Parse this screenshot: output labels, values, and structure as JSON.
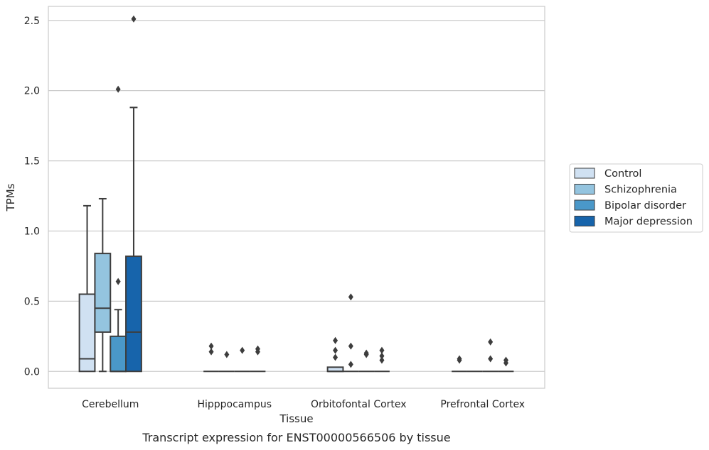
{
  "chart_data": {
    "type": "box",
    "xlabel": "Tissue",
    "ylabel": "TPMs",
    "caption": "Transcript expression for ENST00000566506 by tissue",
    "ylim": [
      -0.12,
      2.6
    ],
    "yticks": [
      "0.0",
      "0.5",
      "1.0",
      "1.5",
      "2.0",
      "2.5"
    ],
    "grid": "horizontal",
    "legend_position": "right",
    "categories": [
      "Cerebellum",
      "Hipppocampus",
      "Orbitofontal Cortex",
      "Prefrontal Cortex"
    ],
    "series": [
      {
        "name": "Control",
        "color": "#d0e1f2",
        "boxes": [
          {
            "min": 0.0,
            "q1": 0.0,
            "median": 0.09,
            "q3": 0.55,
            "max": 1.18,
            "outliers": []
          },
          {
            "min": 0.0,
            "q1": 0.0,
            "median": 0.0,
            "q3": 0.0,
            "max": 0.0,
            "outliers": [
              0.14,
              0.18
            ]
          },
          {
            "min": 0.0,
            "q1": 0.0,
            "median": 0.0,
            "q3": 0.03,
            "max": 0.03,
            "outliers": [
              0.1,
              0.15,
              0.22
            ]
          },
          {
            "min": 0.0,
            "q1": 0.0,
            "median": 0.0,
            "q3": 0.0,
            "max": 0.0,
            "outliers": [
              0.08,
              0.09
            ]
          }
        ]
      },
      {
        "name": "Schizophrenia",
        "color": "#94c4df",
        "boxes": [
          {
            "min": 0.0,
            "q1": 0.28,
            "median": 0.45,
            "q3": 0.84,
            "max": 1.23,
            "outliers": []
          },
          {
            "min": 0.0,
            "q1": 0.0,
            "median": 0.0,
            "q3": 0.0,
            "max": 0.0,
            "outliers": [
              0.12
            ]
          },
          {
            "min": 0.0,
            "q1": 0.0,
            "median": 0.0,
            "q3": 0.0,
            "max": 0.0,
            "outliers": [
              0.05,
              0.18,
              0.53
            ]
          },
          {
            "min": 0.0,
            "q1": 0.0,
            "median": 0.0,
            "q3": 0.0,
            "max": 0.0,
            "outliers": []
          }
        ]
      },
      {
        "name": "Bipolar disorder",
        "color": "#4a98c9",
        "boxes": [
          {
            "min": 0.0,
            "q1": 0.0,
            "median": 0.0,
            "q3": 0.25,
            "max": 0.44,
            "outliers": [
              0.64,
              2.01
            ]
          },
          {
            "min": 0.0,
            "q1": 0.0,
            "median": 0.0,
            "q3": 0.0,
            "max": 0.0,
            "outliers": [
              0.15
            ]
          },
          {
            "min": 0.0,
            "q1": 0.0,
            "median": 0.0,
            "q3": 0.0,
            "max": 0.0,
            "outliers": [
              0.12,
              0.13
            ]
          },
          {
            "min": 0.0,
            "q1": 0.0,
            "median": 0.0,
            "q3": 0.0,
            "max": 0.0,
            "outliers": [
              0.09,
              0.21
            ]
          }
        ]
      },
      {
        "name": "Major depression",
        "color": "#1764ab",
        "boxes": [
          {
            "min": 0.0,
            "q1": 0.0,
            "median": 0.28,
            "q3": 0.82,
            "max": 1.88,
            "outliers": [
              2.51
            ]
          },
          {
            "min": 0.0,
            "q1": 0.0,
            "median": 0.0,
            "q3": 0.0,
            "max": 0.0,
            "outliers": [
              0.14,
              0.16
            ]
          },
          {
            "min": 0.0,
            "q1": 0.0,
            "median": 0.0,
            "q3": 0.0,
            "max": 0.0,
            "outliers": [
              0.08,
              0.11,
              0.15
            ]
          },
          {
            "min": 0.0,
            "q1": 0.0,
            "median": 0.0,
            "q3": 0.0,
            "max": 0.0,
            "outliers": [
              0.06,
              0.08
            ]
          }
        ]
      }
    ]
  }
}
